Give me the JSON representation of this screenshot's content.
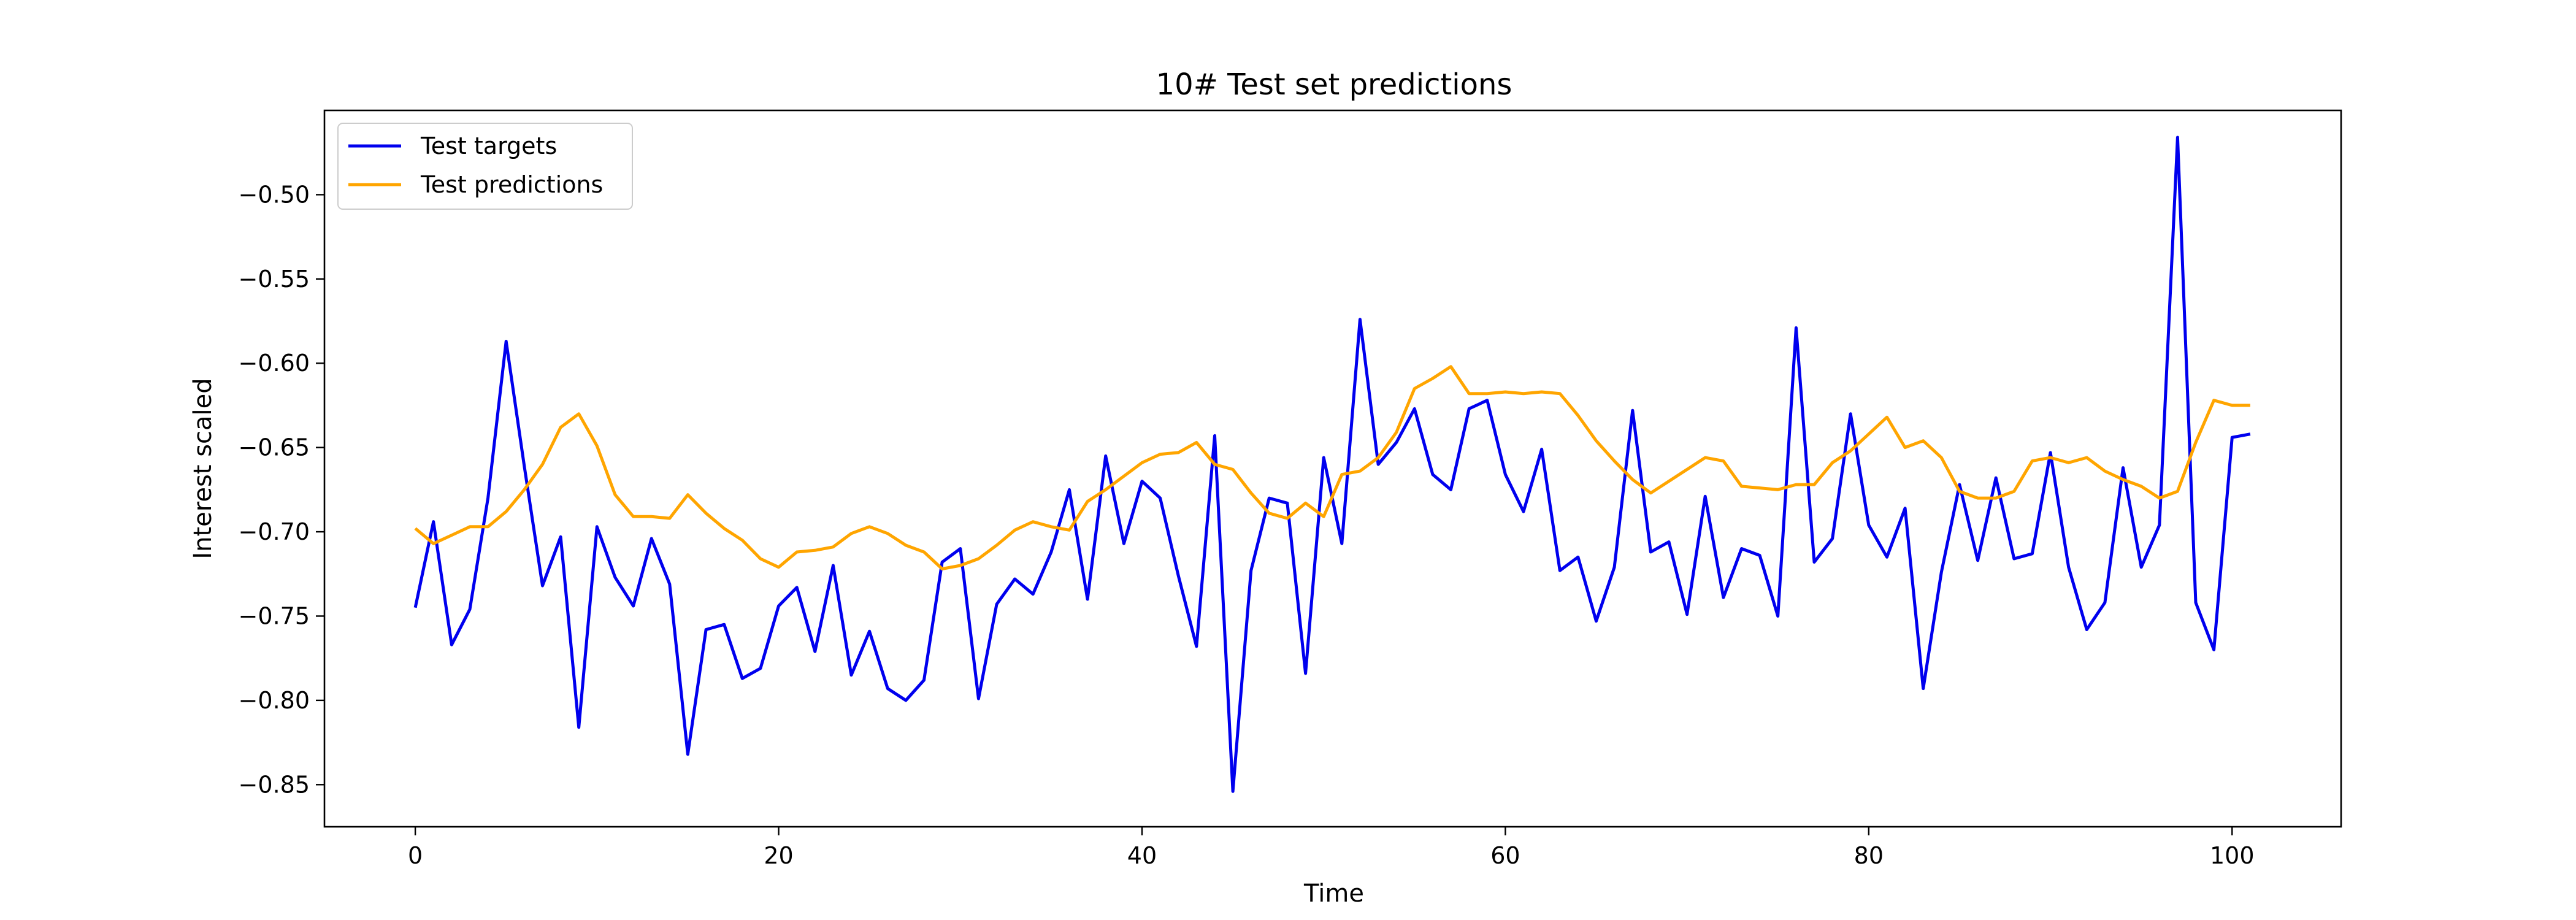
{
  "chart_data": {
    "type": "line",
    "title": "10# Test set predictions",
    "xlabel": "Time",
    "ylabel": "Interest scaled",
    "xlim": [
      -5,
      106
    ],
    "ylim": [
      -0.875,
      -0.45
    ],
    "xticks": [
      0,
      20,
      40,
      60,
      80,
      100
    ],
    "xtick_labels": [
      "0",
      "20",
      "40",
      "60",
      "80",
      "100"
    ],
    "yticks": [
      -0.85,
      -0.8,
      -0.75,
      -0.7,
      -0.65,
      -0.6,
      -0.55,
      -0.5
    ],
    "ytick_labels": [
      "−0.85",
      "−0.80",
      "−0.75",
      "−0.70",
      "−0.65",
      "−0.60",
      "−0.55",
      "−0.50"
    ],
    "grid": false,
    "legend_position": "top-left",
    "series": [
      {
        "name": "Test targets",
        "color": "#0000ee",
        "values": [
          -0.745,
          -0.694,
          -0.767,
          -0.746,
          -0.68,
          -0.587,
          -0.661,
          -0.732,
          -0.703,
          -0.816,
          -0.697,
          -0.727,
          -0.744,
          -0.704,
          -0.731,
          -0.832,
          -0.758,
          -0.755,
          -0.787,
          -0.781,
          -0.744,
          -0.733,
          -0.771,
          -0.72,
          -0.785,
          -0.759,
          -0.793,
          -0.8,
          -0.788,
          -0.718,
          -0.71,
          -0.799,
          -0.743,
          -0.728,
          -0.737,
          -0.712,
          -0.675,
          -0.74,
          -0.655,
          -0.707,
          -0.67,
          -0.68,
          -0.726,
          -0.768,
          -0.643,
          -0.854,
          -0.723,
          -0.68,
          -0.683,
          -0.784,
          -0.656,
          -0.707,
          -0.574,
          -0.66,
          -0.647,
          -0.627,
          -0.666,
          -0.675,
          -0.627,
          -0.622,
          -0.666,
          -0.688,
          -0.651,
          -0.723,
          -0.715,
          -0.753,
          -0.721,
          -0.628,
          -0.712,
          -0.706,
          -0.749,
          -0.679,
          -0.739,
          -0.71,
          -0.714,
          -0.75,
          -0.579,
          -0.718,
          -0.704,
          -0.63,
          -0.696,
          -0.715,
          -0.686,
          -0.793,
          -0.724,
          -0.672,
          -0.717,
          -0.668,
          -0.716,
          -0.713,
          -0.653,
          -0.721,
          -0.758,
          -0.742,
          -0.662,
          -0.721,
          -0.696,
          -0.466,
          -0.742,
          -0.77,
          -0.644,
          -0.642
        ]
      },
      {
        "name": "Test predictions",
        "color": "#ffa500",
        "values": [
          -0.698,
          -0.707,
          -0.702,
          -0.697,
          -0.697,
          -0.688,
          -0.675,
          -0.66,
          -0.638,
          -0.63,
          -0.649,
          -0.678,
          -0.691,
          -0.691,
          -0.692,
          -0.678,
          -0.689,
          -0.698,
          -0.705,
          -0.716,
          -0.721,
          -0.712,
          -0.711,
          -0.709,
          -0.701,
          -0.697,
          -0.701,
          -0.708,
          -0.712,
          -0.722,
          -0.72,
          -0.716,
          -0.708,
          -0.699,
          -0.694,
          -0.697,
          -0.699,
          -0.682,
          -0.675,
          -0.667,
          -0.659,
          -0.654,
          -0.653,
          -0.647,
          -0.66,
          -0.663,
          -0.677,
          -0.689,
          -0.692,
          -0.683,
          -0.691,
          -0.666,
          -0.664,
          -0.656,
          -0.641,
          -0.615,
          -0.609,
          -0.602,
          -0.618,
          -0.618,
          -0.617,
          -0.618,
          -0.617,
          -0.618,
          -0.631,
          -0.646,
          -0.658,
          -0.669,
          -0.677,
          -0.67,
          -0.663,
          -0.656,
          -0.658,
          -0.673,
          -0.674,
          -0.675,
          -0.672,
          -0.672,
          -0.659,
          -0.652,
          -0.642,
          -0.632,
          -0.65,
          -0.646,
          -0.656,
          -0.676,
          -0.68,
          -0.68,
          -0.676,
          -0.658,
          -0.656,
          -0.659,
          -0.656,
          -0.664,
          -0.669,
          -0.673,
          -0.68,
          -0.676,
          -0.647,
          -0.622,
          -0.625,
          -0.625
        ]
      }
    ]
  }
}
